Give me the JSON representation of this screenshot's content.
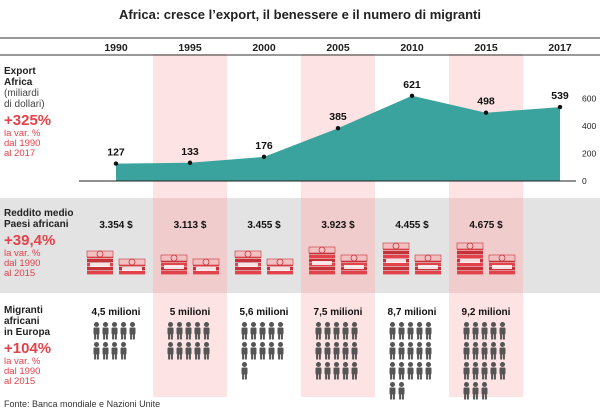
{
  "title": "Africa: cresce l’export, il benessere e il numero di migranti",
  "source": "Fonte: Banca mondiale e Nazioni Unite",
  "colors": {
    "area": "#3aa39d",
    "highlight": "#fde3e3",
    "band": "#e3e3e3",
    "accent": "#e2424a",
    "person": "#555555"
  },
  "chart_data": [
    {
      "type": "area",
      "title": "",
      "ylabel": "Export Africa (miliardi di dollari)",
      "categories": [
        "1990",
        "1995",
        "2000",
        "2005",
        "2010",
        "2015",
        "2017"
      ],
      "values": [
        127,
        133,
        176,
        385,
        621,
        498,
        539
      ],
      "value_labels": [
        "127",
        "133",
        "176",
        "385",
        "621",
        "498",
        "539"
      ],
      "yticks": [
        "600",
        "400",
        "200",
        "0"
      ],
      "ylim": [
        0,
        700
      ],
      "grid": false
    },
    {
      "type": "table",
      "ylabel": "Reddito medio Paesi africani",
      "categories": [
        "1990",
        "1995",
        "2000",
        "2005",
        "2010",
        "2015"
      ],
      "values": [
        3354,
        3113,
        3455,
        3923,
        4455,
        4675
      ],
      "value_labels": [
        "3.354 $",
        "3.113 $",
        "3.455 $",
        "3.923 $",
        "4.455 $",
        "4.675 $"
      ]
    },
    {
      "type": "table",
      "ylabel": "Migranti africani in Europa",
      "categories": [
        "1990",
        "1995",
        "2000",
        "2005",
        "2010",
        "2015"
      ],
      "values": [
        4.5,
        5,
        5.6,
        7.5,
        8.7,
        9.2
      ],
      "value_labels": [
        "4,5 milioni",
        "5 milioni",
        "5,6 milioni",
        "7,5 milioni",
        "8,7 milioni",
        "9,2 milioni"
      ],
      "icon": "person-icon"
    }
  ],
  "sections": {
    "export": {
      "label_line1": "Export",
      "label_line2": "Africa",
      "sub1": "(miliardi",
      "sub2": "di dollari)",
      "pct": "+325%",
      "note1": "la var. %",
      "note2": "dal 1990",
      "note3": "al 2017"
    },
    "income": {
      "label_line1": "Reddito medio",
      "label_line2": "Paesi africani",
      "pct": "+39,4%",
      "note1": "la var. %",
      "note2": "dal 1990",
      "note3": "al 2015",
      "icon": "money-stack-icon"
    },
    "migrants": {
      "label_line1": "Migranti",
      "label_line2": "africani",
      "label_line3": "in Europa",
      "pct": "+104%",
      "note1": "la var. %",
      "note2": "dal 1990",
      "note3": "al 2015",
      "icon": "person-icon"
    }
  }
}
